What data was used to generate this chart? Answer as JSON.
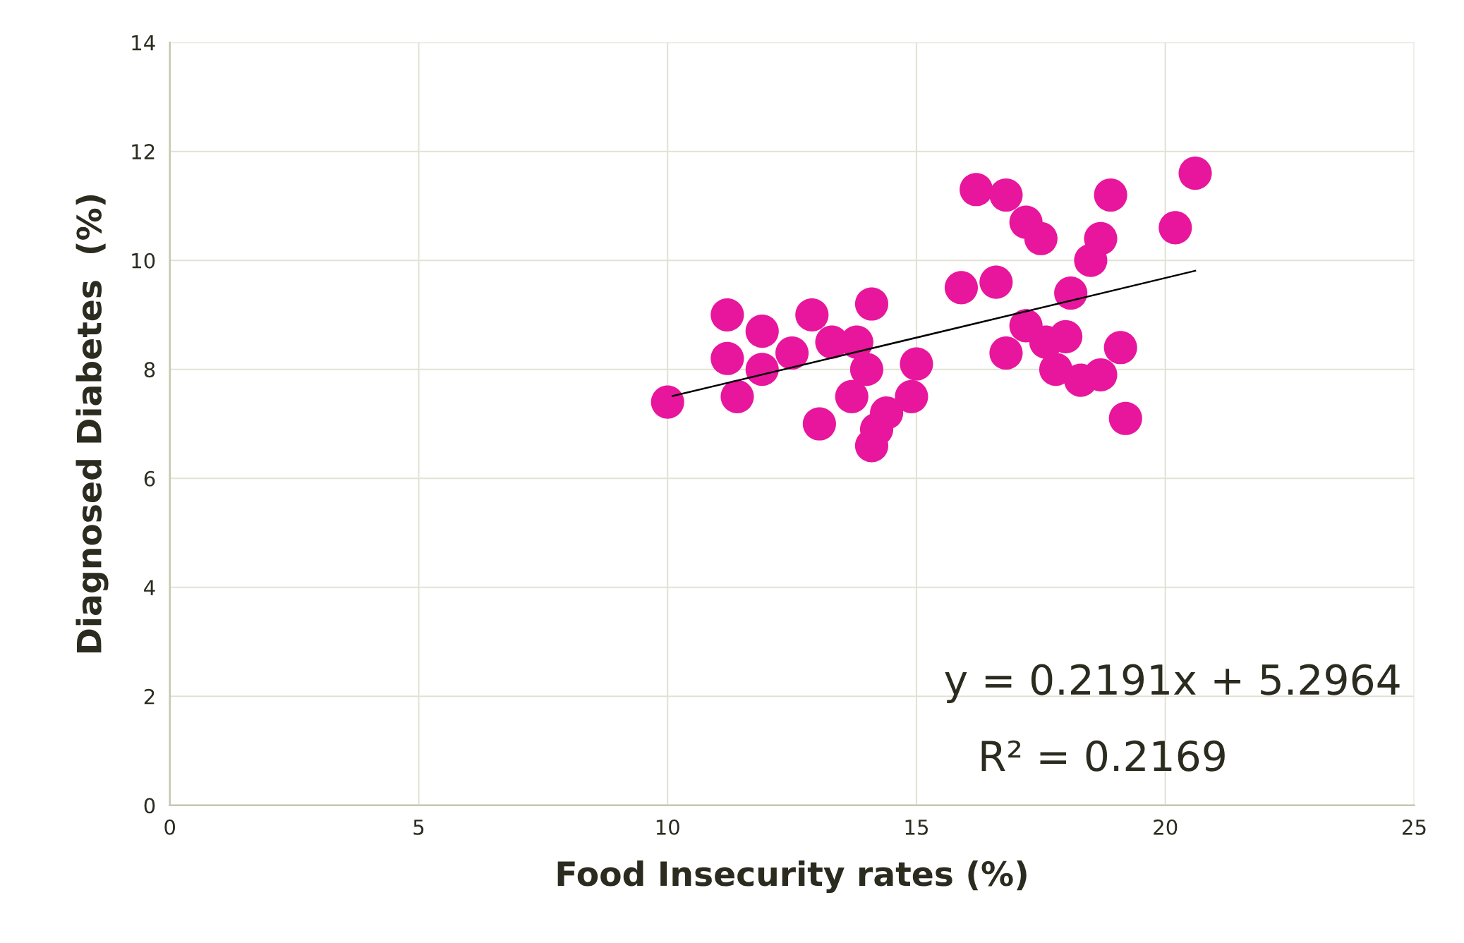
{
  "chart_data": {
    "type": "scatter",
    "xlabel": "Food Insecurity rates (%)",
    "ylabel": "Diagnosed Diabetes  (%)",
    "xlim": [
      0,
      25
    ],
    "xticks": [
      0,
      5,
      10,
      15,
      20,
      25
    ],
    "ylim": [
      0,
      14
    ],
    "yticks": [
      0,
      2,
      4,
      6,
      8,
      10,
      12,
      14
    ],
    "grid": true,
    "legend": false,
    "series": [
      {
        "type": "scatter",
        "marker": "circle",
        "color": "#e8169c",
        "x": [
          10.0,
          11.2,
          11.2,
          11.4,
          11.9,
          11.9,
          12.5,
          12.9,
          13.05,
          13.3,
          13.8,
          13.7,
          14.0,
          14.1,
          14.1,
          14.2,
          14.4,
          14.9,
          15.0,
          15.9,
          16.2,
          16.6,
          16.8,
          16.8,
          17.2,
          17.2,
          17.5,
          17.6,
          17.8,
          18.0,
          18.1,
          18.3,
          18.5,
          18.7,
          18.7,
          18.9,
          19.1,
          19.2,
          20.2,
          20.6
        ],
        "values": [
          7.4,
          9.0,
          8.2,
          7.5,
          8.7,
          8.0,
          8.3,
          9.0,
          7.0,
          8.5,
          8.5,
          7.5,
          8.0,
          9.2,
          6.6,
          6.9,
          7.2,
          7.5,
          8.1,
          9.5,
          11.3,
          9.6,
          11.2,
          8.3,
          10.7,
          8.8,
          10.4,
          8.5,
          8.0,
          8.6,
          9.4,
          7.8,
          10.0,
          10.4,
          7.9,
          11.2,
          8.4,
          7.1,
          10.6,
          11.6
        ]
      },
      {
        "type": "line",
        "marker": "none",
        "color": "#000000",
        "x": [
          10.1,
          20.6
        ],
        "values": [
          7.51,
          9.81
        ]
      }
    ],
    "annotations": [
      "y = 0.2191x + 5.2964",
      "R² = 0.2169"
    ]
  }
}
